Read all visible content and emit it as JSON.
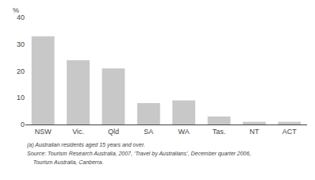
{
  "chart_data": {
    "type": "bar",
    "categories": [
      "NSW",
      "Vic.",
      "Qld",
      "SA",
      "WA",
      "Tas.",
      "NT",
      "ACT"
    ],
    "values": [
      33.0,
      24.0,
      21.0,
      8.0,
      9.0,
      3.0,
      1.0,
      1.0
    ],
    "color": "#c8c8c8",
    "ylabel": "%",
    "ylim": [
      0,
      40
    ],
    "yticks": [
      0,
      10,
      20,
      30,
      40
    ],
    "grid": false,
    "annotations": [
      "(a) Australian residents aged 15 years and over.",
      "Source: Tourism Research Australia, 2007, ‘Travel by Australians’, December quarter 2006,",
      "    Tourism Australia, Canberra."
    ]
  }
}
